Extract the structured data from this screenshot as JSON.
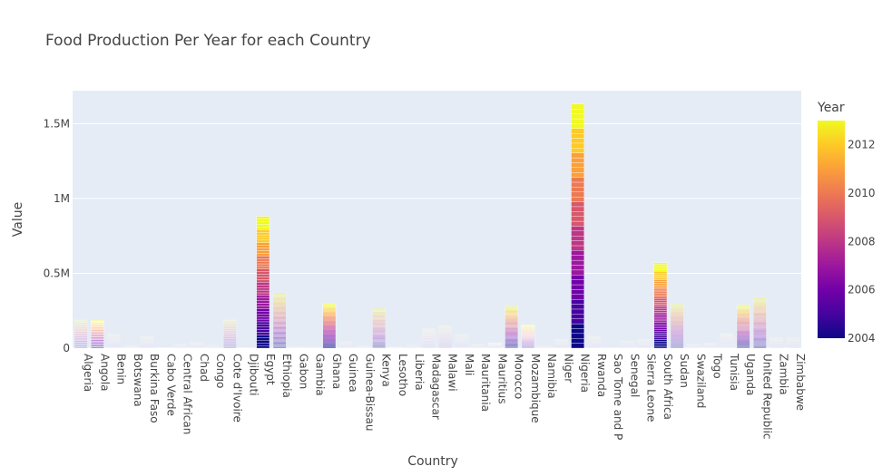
{
  "chart_data": {
    "type": "bar",
    "barmode": "stack",
    "title": "Food Production Per Year for each Country",
    "xlabel": "Country",
    "ylabel": "Value",
    "ylim": [
      0,
      1720000
    ],
    "ytick_values": [
      0,
      500000,
      1000000,
      1500000
    ],
    "ytick_labels": [
      "0",
      "0.5M",
      "1M",
      "1.5M"
    ],
    "grid": true,
    "colorbar": {
      "title": "Year",
      "range": [
        2004,
        2013
      ],
      "tick_values": [
        2004,
        2006,
        2008,
        2010,
        2012
      ],
      "tick_labels": [
        "2004",
        "2006",
        "2008",
        "2010",
        "2012"
      ],
      "colorscale": [
        "#0d0887",
        "#46039f",
        "#7201a8",
        "#9c179e",
        "#bd3786",
        "#d8576b",
        "#ed7953",
        "#fb9f3a",
        "#fdca26",
        "#f0f921"
      ]
    },
    "years": [
      2004,
      2005,
      2006,
      2007,
      2008,
      2009,
      2010,
      2011,
      2012,
      2013
    ],
    "categories": [
      "Algeria",
      "Angola",
      "Benin",
      "Botswana",
      "Burkina Faso",
      "Cabo Verde",
      "Central African",
      "Chad",
      "Congo",
      "Cote d'Ivoire",
      "Djibouti",
      "Egypt",
      "Ethiopia",
      "Gabon",
      "Gambia",
      "Ghana",
      "Guinea",
      "Guinea-Bissau",
      "Kenya",
      "Lesotho",
      "Liberia",
      "Madagascar",
      "Malawi",
      "Mali",
      "Mauritania",
      "Mauritius",
      "Morocco",
      "Mozambique",
      "Namibia",
      "Niger",
      "Nigeria",
      "Rwanda",
      "Sao Tome and P",
      "Senegal",
      "Sierra Leone",
      "South Africa",
      "Sudan",
      "Swaziland",
      "Togo",
      "Tunisia",
      "Uganda",
      "United Republic",
      "Zambia",
      "Zimbabwe"
    ],
    "values": [
      190000,
      185000,
      95000,
      15000,
      80000,
      3000,
      25000,
      40000,
      20000,
      195000,
      5000,
      880000,
      370000,
      12000,
      8000,
      300000,
      45000,
      15000,
      270000,
      10000,
      20000,
      130000,
      150000,
      95000,
      25000,
      35000,
      280000,
      155000,
      15000,
      60000,
      1630000,
      80000,
      2000,
      50000,
      60000,
      570000,
      300000,
      25000,
      35000,
      100000,
      290000,
      340000,
      70000,
      70000
    ],
    "opacity_by_category": [
      0.45,
      1,
      0.3,
      0.3,
      0.3,
      0.3,
      0.3,
      0.3,
      0.3,
      0.45,
      0.3,
      1,
      0.45,
      0.3,
      0.3,
      1,
      0.3,
      0.3,
      0.45,
      0.3,
      0.3,
      0.35,
      0.35,
      0.3,
      0.3,
      0.55,
      0.7,
      0.9,
      0.3,
      0.3,
      1,
      0.3,
      0.3,
      0.3,
      0.3,
      1,
      0.45,
      0.3,
      0.3,
      0.35,
      0.7,
      0.45,
      0.3,
      0.3
    ]
  }
}
